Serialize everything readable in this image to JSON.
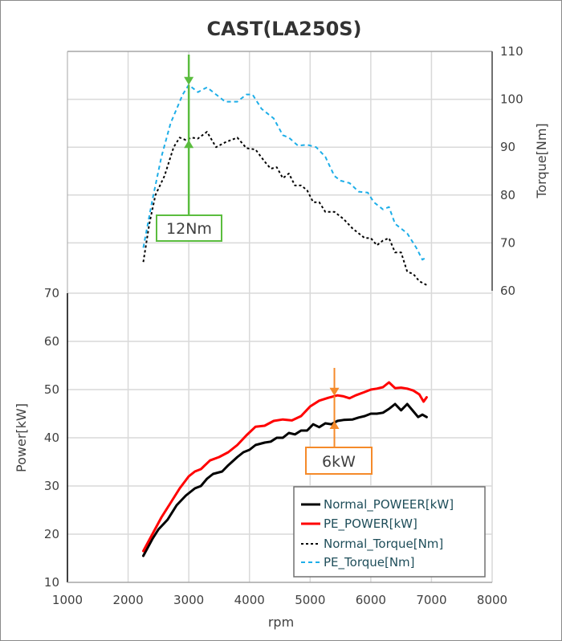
{
  "chart_data": {
    "type": "line",
    "title": "CAST(LA250S)",
    "xlabel": "rpm",
    "ylabel": "Power[kW]",
    "y2label": "Torque[Nm]",
    "xlim": [
      1000,
      8000
    ],
    "ylim": [
      10,
      70
    ],
    "y2lim": [
      60,
      110
    ],
    "x_ticks": [
      "1000",
      "2000",
      "3000",
      "4000",
      "5000",
      "6000",
      "7000",
      "8000"
    ],
    "y_ticks": [
      "10",
      "20",
      "30",
      "40",
      "50",
      "60",
      "70"
    ],
    "y2_ticks": [
      "60",
      "70",
      "80",
      "90",
      "100",
      "110"
    ],
    "grid": true,
    "legend_position": "bottom-right",
    "series": [
      {
        "name": "Normal_POWEER[kW]",
        "axis": "left",
        "color": "#000000",
        "style": "solid",
        "points": [
          [
            2250,
            15.5
          ],
          [
            2400,
            19
          ],
          [
            2500,
            21
          ],
          [
            2650,
            23
          ],
          [
            2800,
            26
          ],
          [
            2950,
            28
          ],
          [
            3100,
            29.5
          ],
          [
            3200,
            30
          ],
          [
            3300,
            31.5
          ],
          [
            3400,
            32.5
          ],
          [
            3550,
            33
          ],
          [
            3650,
            34.3
          ],
          [
            3800,
            36
          ],
          [
            3900,
            37
          ],
          [
            4000,
            37.5
          ],
          [
            4100,
            38.5
          ],
          [
            4250,
            39
          ],
          [
            4350,
            39.2
          ],
          [
            4450,
            40
          ],
          [
            4550,
            40
          ],
          [
            4650,
            41
          ],
          [
            4750,
            40.7
          ],
          [
            4850,
            41.5
          ],
          [
            4950,
            41.5
          ],
          [
            5050,
            42.8
          ],
          [
            5150,
            42.2
          ],
          [
            5250,
            43
          ],
          [
            5350,
            42.8
          ],
          [
            5450,
            43.5
          ],
          [
            5550,
            43.7
          ],
          [
            5700,
            43.8
          ],
          [
            5800,
            44.2
          ],
          [
            5900,
            44.5
          ],
          [
            6000,
            45
          ],
          [
            6100,
            45
          ],
          [
            6200,
            45.2
          ],
          [
            6300,
            46
          ],
          [
            6400,
            47
          ],
          [
            6500,
            45.7
          ],
          [
            6600,
            47
          ],
          [
            6700,
            45.5
          ],
          [
            6780,
            44.3
          ],
          [
            6850,
            44.8
          ],
          [
            6920,
            44.3
          ]
        ]
      },
      {
        "name": "PE_POWER[kW]",
        "axis": "left",
        "color": "#ff0000",
        "style": "solid",
        "points": [
          [
            2250,
            16.5
          ],
          [
            2400,
            20
          ],
          [
            2550,
            23.5
          ],
          [
            2700,
            26.5
          ],
          [
            2850,
            29.5
          ],
          [
            3000,
            32
          ],
          [
            3100,
            33
          ],
          [
            3200,
            33.5
          ],
          [
            3350,
            35.3
          ],
          [
            3500,
            36
          ],
          [
            3650,
            37
          ],
          [
            3800,
            38.5
          ],
          [
            3950,
            40.5
          ],
          [
            4100,
            42.3
          ],
          [
            4250,
            42.5
          ],
          [
            4400,
            43.5
          ],
          [
            4550,
            43.8
          ],
          [
            4700,
            43.6
          ],
          [
            4850,
            44.5
          ],
          [
            5000,
            46.5
          ],
          [
            5150,
            47.7
          ],
          [
            5300,
            48.3
          ],
          [
            5450,
            48.8
          ],
          [
            5550,
            48.6
          ],
          [
            5650,
            48.2
          ],
          [
            5750,
            48.8
          ],
          [
            5900,
            49.5
          ],
          [
            6000,
            50
          ],
          [
            6100,
            50.2
          ],
          [
            6200,
            50.5
          ],
          [
            6300,
            51.5
          ],
          [
            6400,
            50.3
          ],
          [
            6500,
            50.4
          ],
          [
            6600,
            50.2
          ],
          [
            6700,
            49.8
          ],
          [
            6800,
            49
          ],
          [
            6870,
            47.5
          ],
          [
            6920,
            48.4
          ]
        ]
      },
      {
        "name": "Normal_Torque[Nm]",
        "axis": "right",
        "color": "#000000",
        "style": "dotted",
        "points": [
          [
            2250,
            66
          ],
          [
            2350,
            74
          ],
          [
            2450,
            80
          ],
          [
            2600,
            84
          ],
          [
            2750,
            90
          ],
          [
            2850,
            92
          ],
          [
            2950,
            91.5
          ],
          [
            3050,
            92
          ],
          [
            3150,
            91.8
          ],
          [
            3300,
            93.2
          ],
          [
            3450,
            90
          ],
          [
            3600,
            91
          ],
          [
            3800,
            92
          ],
          [
            3950,
            89.8
          ],
          [
            4100,
            89.5
          ],
          [
            4250,
            87
          ],
          [
            4350,
            85.5
          ],
          [
            4450,
            85.8
          ],
          [
            4550,
            83.5
          ],
          [
            4650,
            84.5
          ],
          [
            4750,
            82
          ],
          [
            4850,
            82
          ],
          [
            4950,
            81
          ],
          [
            5050,
            78.5
          ],
          [
            5150,
            78.5
          ],
          [
            5250,
            76.5
          ],
          [
            5400,
            76.5
          ],
          [
            5550,
            75
          ],
          [
            5700,
            73
          ],
          [
            5900,
            71
          ],
          [
            6000,
            71
          ],
          [
            6100,
            69.5
          ],
          [
            6200,
            70.5
          ],
          [
            6300,
            71
          ],
          [
            6400,
            68
          ],
          [
            6500,
            68
          ],
          [
            6600,
            64
          ],
          [
            6700,
            63.5
          ],
          [
            6800,
            62
          ],
          [
            6920,
            61.2
          ]
        ]
      },
      {
        "name": "PE_Torque[Nm]",
        "axis": "right",
        "color": "#1eaee8",
        "style": "dashed",
        "points": [
          [
            2250,
            69
          ],
          [
            2400,
            79
          ],
          [
            2550,
            88
          ],
          [
            2700,
            95
          ],
          [
            2900,
            101
          ],
          [
            3000,
            103
          ],
          [
            3150,
            101.5
          ],
          [
            3300,
            102.5
          ],
          [
            3450,
            101
          ],
          [
            3600,
            99.5
          ],
          [
            3800,
            99.5
          ],
          [
            3950,
            101
          ],
          [
            4050,
            101
          ],
          [
            4200,
            98
          ],
          [
            4400,
            96
          ],
          [
            4550,
            92.5
          ],
          [
            4650,
            92
          ],
          [
            4800,
            90.3
          ],
          [
            4950,
            90.5
          ],
          [
            5100,
            90
          ],
          [
            5250,
            88
          ],
          [
            5400,
            84
          ],
          [
            5500,
            83
          ],
          [
            5650,
            82.5
          ],
          [
            5800,
            80.7
          ],
          [
            5950,
            80.5
          ],
          [
            6050,
            78.5
          ],
          [
            6200,
            77
          ],
          [
            6300,
            77.5
          ],
          [
            6400,
            74
          ],
          [
            6600,
            72
          ],
          [
            6750,
            69
          ],
          [
            6850,
            66.5
          ],
          [
            6920,
            67
          ]
        ]
      }
    ],
    "annotations": [
      {
        "label": "12Nm",
        "x": 3000,
        "axis": "right",
        "from": 91.5,
        "to": 103,
        "color": "#5bbd3f"
      },
      {
        "label": "6kW",
        "x": 5400,
        "axis": "left",
        "from": 43.5,
        "to": 48.7,
        "color": "#f58a2a"
      }
    ]
  }
}
